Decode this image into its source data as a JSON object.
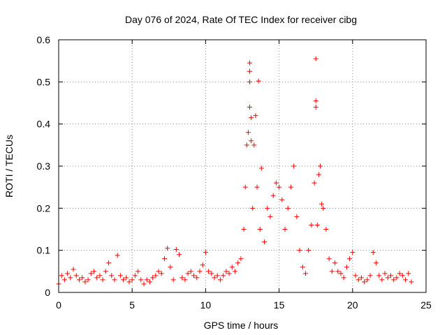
{
  "chart_data": {
    "type": "scatter",
    "title": "Day 076 of 2024, Rate Of TEC Index for receiver cibg",
    "xlabel": "GPS time / hours",
    "ylabel": "ROTI / TECUs",
    "xlim": [
      0,
      25
    ],
    "ylim": [
      0,
      0.6
    ],
    "xticks": [
      0,
      5,
      10,
      15,
      20,
      25
    ],
    "xtick_labels": [
      "0",
      "5",
      "10",
      "15",
      "20",
      "25"
    ],
    "yticks": [
      0,
      0.1,
      0.2,
      0.3,
      0.4,
      0.5,
      0.6
    ],
    "ytick_labels": [
      "0",
      "0.1",
      "0.2",
      "0.3",
      "0.4",
      "0.5",
      "0.6"
    ],
    "grid": true,
    "marker": "+",
    "series": [
      {
        "name": "ROTI",
        "color": "#ff0000",
        "points": [
          [
            0.0,
            0.02
          ],
          [
            0.2,
            0.04
          ],
          [
            0.4,
            0.03
          ],
          [
            0.6,
            0.045
          ],
          [
            0.8,
            0.035
          ],
          [
            1.0,
            0.055
          ],
          [
            1.2,
            0.04
          ],
          [
            1.4,
            0.03
          ],
          [
            1.6,
            0.035
          ],
          [
            1.8,
            0.025
          ],
          [
            2.0,
            0.03
          ],
          [
            2.2,
            0.045
          ],
          [
            2.4,
            0.05
          ],
          [
            2.6,
            0.035
          ],
          [
            2.8,
            0.04
          ],
          [
            3.0,
            0.03
          ],
          [
            3.2,
            0.05
          ],
          [
            3.4,
            0.07
          ],
          [
            3.6,
            0.04
          ],
          [
            3.8,
            0.03
          ],
          [
            4.0,
            0.088
          ],
          [
            4.2,
            0.04
          ],
          [
            4.4,
            0.03
          ],
          [
            4.6,
            0.035
          ],
          [
            4.8,
            0.025
          ],
          [
            5.0,
            0.03
          ],
          [
            5.2,
            0.04
          ],
          [
            5.4,
            0.05
          ],
          [
            5.6,
            0.03
          ],
          [
            5.8,
            0.02
          ],
          [
            6.0,
            0.03
          ],
          [
            6.2,
            0.025
          ],
          [
            6.4,
            0.035
          ],
          [
            6.6,
            0.04
          ],
          [
            6.8,
            0.05
          ],
          [
            7.0,
            0.045
          ],
          [
            7.2,
            0.08
          ],
          [
            7.4,
            0.105
          ],
          [
            7.6,
            0.06
          ],
          [
            7.8,
            0.03
          ],
          [
            8.0,
            0.102
          ],
          [
            8.2,
            0.09
          ],
          [
            8.4,
            0.035
          ],
          [
            8.6,
            0.03
          ],
          [
            8.8,
            0.045
          ],
          [
            9.0,
            0.05
          ],
          [
            9.2,
            0.04
          ],
          [
            9.4,
            0.035
          ],
          [
            9.6,
            0.05
          ],
          [
            9.8,
            0.065
          ],
          [
            10.0,
            0.095
          ],
          [
            10.2,
            0.05
          ],
          [
            10.4,
            0.045
          ],
          [
            10.6,
            0.035
          ],
          [
            10.8,
            0.04
          ],
          [
            11.0,
            0.03
          ],
          [
            11.2,
            0.04
          ],
          [
            11.4,
            0.05
          ],
          [
            11.6,
            0.045
          ],
          [
            11.8,
            0.06
          ],
          [
            12.0,
            0.05
          ],
          [
            12.2,
            0.07
          ],
          [
            12.4,
            0.08
          ],
          [
            12.6,
            0.15
          ],
          [
            12.7,
            0.25
          ],
          [
            12.8,
            0.35
          ],
          [
            12.9,
            0.38
          ],
          [
            13.0,
            0.545
          ],
          [
            13.0,
            0.525
          ],
          [
            13.0,
            0.5
          ],
          [
            13.0,
            0.44
          ],
          [
            13.1,
            0.415
          ],
          [
            13.1,
            0.36
          ],
          [
            13.2,
            0.2
          ],
          [
            13.3,
            0.35
          ],
          [
            13.4,
            0.42
          ],
          [
            13.5,
            0.25
          ],
          [
            13.6,
            0.502
          ],
          [
            13.7,
            0.15
          ],
          [
            13.8,
            0.295
          ],
          [
            14.0,
            0.12
          ],
          [
            14.2,
            0.2
          ],
          [
            14.4,
            0.18
          ],
          [
            14.6,
            0.23
          ],
          [
            14.8,
            0.26
          ],
          [
            15.0,
            0.25
          ],
          [
            15.2,
            0.22
          ],
          [
            15.4,
            0.15
          ],
          [
            15.6,
            0.2
          ],
          [
            15.8,
            0.25
          ],
          [
            16.0,
            0.3
          ],
          [
            16.2,
            0.18
          ],
          [
            16.4,
            0.1
          ],
          [
            16.6,
            0.06
          ],
          [
            16.8,
            0.045
          ],
          [
            17.0,
            0.1
          ],
          [
            17.2,
            0.16
          ],
          [
            17.4,
            0.26
          ],
          [
            17.5,
            0.555
          ],
          [
            17.5,
            0.455
          ],
          [
            17.5,
            0.44
          ],
          [
            17.6,
            0.16
          ],
          [
            17.7,
            0.28
          ],
          [
            17.8,
            0.3
          ],
          [
            17.9,
            0.21
          ],
          [
            18.0,
            0.2
          ],
          [
            18.2,
            0.15
          ],
          [
            18.4,
            0.08
          ],
          [
            18.6,
            0.05
          ],
          [
            18.8,
            0.07
          ],
          [
            19.0,
            0.05
          ],
          [
            19.2,
            0.045
          ],
          [
            19.4,
            0.035
          ],
          [
            19.6,
            0.06
          ],
          [
            19.8,
            0.08
          ],
          [
            20.0,
            0.095
          ],
          [
            20.2,
            0.04
          ],
          [
            20.4,
            0.03
          ],
          [
            20.6,
            0.035
          ],
          [
            20.8,
            0.025
          ],
          [
            21.0,
            0.03
          ],
          [
            21.2,
            0.04
          ],
          [
            21.4,
            0.095
          ],
          [
            21.6,
            0.07
          ],
          [
            21.8,
            0.04
          ],
          [
            22.0,
            0.03
          ],
          [
            22.2,
            0.045
          ],
          [
            22.4,
            0.035
          ],
          [
            22.6,
            0.04
          ],
          [
            22.8,
            0.03
          ],
          [
            23.0,
            0.035
          ],
          [
            23.2,
            0.045
          ],
          [
            23.4,
            0.04
          ],
          [
            23.6,
            0.03
          ],
          [
            23.8,
            0.045
          ],
          [
            24.0,
            0.025
          ]
        ]
      }
    ]
  }
}
